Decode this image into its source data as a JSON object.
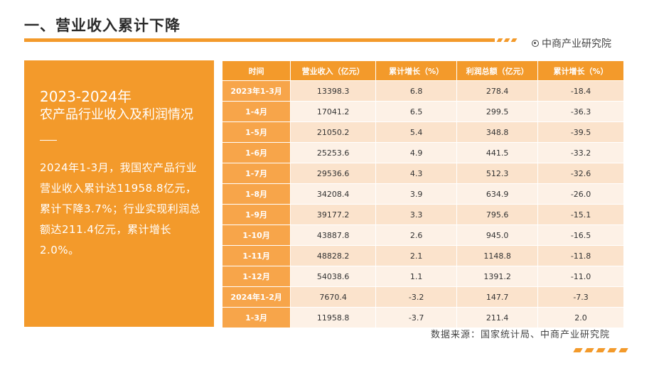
{
  "header": {
    "title": "一、营业收入累计下降",
    "brand": "中商产业研究院"
  },
  "panel": {
    "year": "2023-2024年",
    "subtitle": "农产品行业收入及利润情况",
    "body": "2024年1-3月，我国农产品行业营业收入累计达11958.8亿元，累计下降3.7%；行业实现利润总额达211.4亿元，累计增长2.0%。"
  },
  "table": {
    "headers": [
      "时间",
      "营业收入（亿元）",
      "累计增长（%）",
      "利润总额（亿元）",
      "累计增长（%）"
    ],
    "rows": [
      [
        "2023年1-3月",
        "13398.3",
        "6.8",
        "278.4",
        "-18.4"
      ],
      [
        "1-4月",
        "17041.2",
        "6.5",
        "299.5",
        "-36.3"
      ],
      [
        "1-5月",
        "21050.2",
        "5.4",
        "348.8",
        "-39.5"
      ],
      [
        "1-6月",
        "25253.6",
        "4.9",
        "441.5",
        "-33.2"
      ],
      [
        "1-7月",
        "29536.6",
        "4.3",
        "512.3",
        "-32.6"
      ],
      [
        "1-8月",
        "34208.4",
        "3.9",
        "634.9",
        "-26.0"
      ],
      [
        "1-9月",
        "39177.2",
        "3.3",
        "795.6",
        "-15.1"
      ],
      [
        "1-10月",
        "43887.8",
        "2.6",
        "945.0",
        "-16.5"
      ],
      [
        "1-11月",
        "48828.2",
        "2.1",
        "1148.8",
        "-11.8"
      ],
      [
        "1-12月",
        "54038.6",
        "1.1",
        "1391.2",
        "-11.0"
      ],
      [
        "2024年1-2月",
        "7670.4",
        "-3.2",
        "147.7",
        "-7.3"
      ],
      [
        "1-3月",
        "11958.8",
        "-3.7",
        "211.4",
        "2.0"
      ]
    ]
  },
  "footer": {
    "source": "数据来源：国家统计局、中商产业研究院"
  },
  "colors": {
    "accent": "#f39a2b",
    "period_cell": "#f7a54a",
    "row_light": "#fdf1e6",
    "row_dark": "#fbe3cc"
  }
}
